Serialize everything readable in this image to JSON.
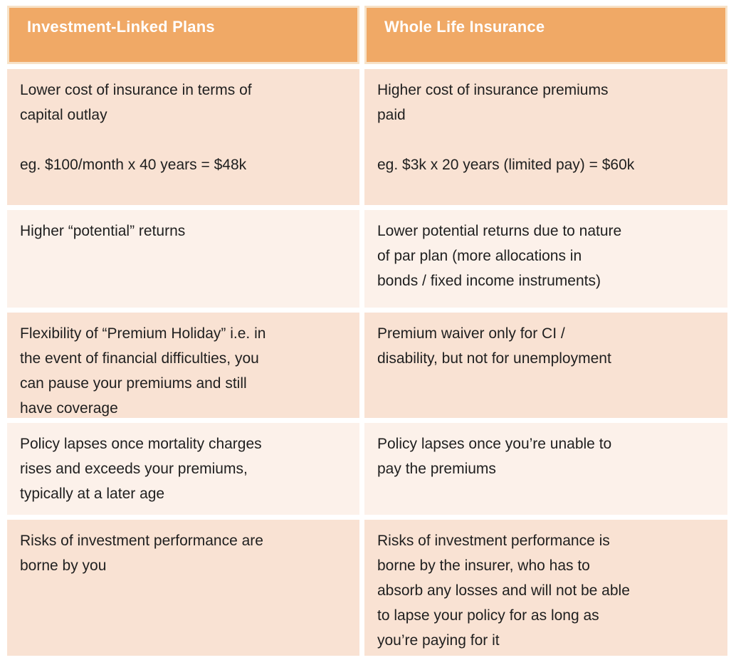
{
  "colors": {
    "header_background": "#F0A966",
    "header_border": "#F7E2C8",
    "header_text": "#FFFFFF",
    "row_dark_background": "#F9E2D3",
    "row_light_background": "#FCF1EA",
    "body_text": "#1F1F1F",
    "gutter": "#FFFFFF"
  },
  "table": {
    "headers": [
      {
        "label": "Investment-Linked Plans"
      },
      {
        "label": "Whole Life Insurance"
      }
    ],
    "rows": [
      {
        "left": "Lower cost of insurance in terms of\ncapital outlay\n\neg. $100/month x 40 years = $48k",
        "right": "Higher cost of insurance premiums\npaid\n\neg. $3k x 20 years (limited pay) = $60k"
      },
      {
        "left": "Higher “potential” returns",
        "right": "Lower potential returns due to nature\nof par plan (more allocations in\nbonds / fixed income instruments)"
      },
      {
        "left": "Flexibility of “Premium Holiday” i.e. in\nthe event of financial difficulties, you\ncan pause your premiums and still\nhave coverage",
        "right": "Premium waiver only for CI /\ndisability, but not for unemployment"
      },
      {
        "left": "Policy lapses once mortality charges\nrises and exceeds your premiums,\ntypically at a later age",
        "right": "Policy lapses once you’re unable to\npay the premiums"
      },
      {
        "left": "Risks of investment performance are\nborne by you",
        "right": "Risks of investment performance is\nborne by the insurer, who has to\nabsorb any losses and will not be able\nto lapse your policy for as long as\nyou’re paying for it"
      }
    ]
  }
}
